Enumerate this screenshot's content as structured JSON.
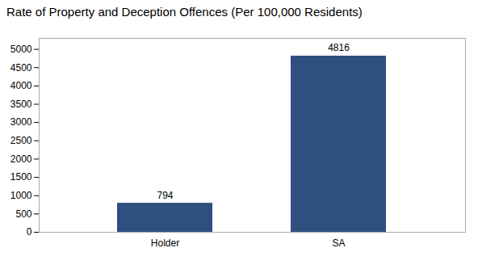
{
  "chart_data": {
    "type": "bar",
    "title": "Rate of Property and Deception Offences (Per 100,000 Residents)",
    "categories": [
      "Holder",
      "SA"
    ],
    "values": [
      794,
      4816
    ],
    "color": "#2e4f80",
    "ylim": [
      0,
      5300
    ],
    "yticks": [
      0,
      500,
      1000,
      1500,
      2000,
      2500,
      3000,
      3500,
      4000,
      4500,
      5000
    ],
    "grid": false,
    "data_labels": true
  }
}
